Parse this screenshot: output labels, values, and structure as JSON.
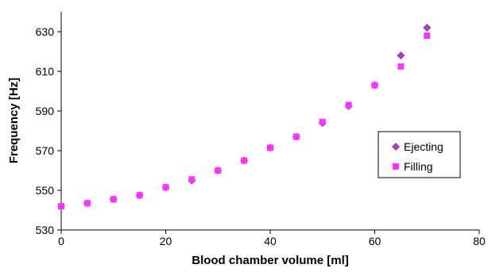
{
  "chart_data": {
    "type": "scatter",
    "title": "",
    "xlabel": "Blood chamber volume [ml]",
    "ylabel": "Frequency  [Hz]",
    "xlim": [
      0,
      80
    ],
    "ylim": [
      530,
      640
    ],
    "xticks": [
      0,
      20,
      40,
      60,
      80
    ],
    "yticks": [
      530,
      550,
      570,
      590,
      610,
      630
    ],
    "grid": false,
    "legend_position": "right",
    "series": [
      {
        "name": "Ejecting",
        "marker": "diamond",
        "color": "#b03fc0",
        "x": [
          0,
          5,
          10,
          15,
          20,
          25,
          30,
          35,
          40,
          45,
          50,
          55,
          60,
          65,
          70
        ],
        "y": [
          542,
          543.5,
          545.5,
          547.5,
          551.5,
          555,
          560,
          565,
          571.5,
          577,
          584,
          592.5,
          603,
          618,
          632
        ]
      },
      {
        "name": "Filling",
        "marker": "square",
        "color": "#ff33ff",
        "x": [
          0,
          5,
          10,
          15,
          20,
          25,
          30,
          35,
          40,
          45,
          50,
          55,
          60,
          65,
          70
        ],
        "y": [
          542,
          543.5,
          545.5,
          547.5,
          551.5,
          555.5,
          560,
          565,
          571.5,
          577,
          584.5,
          593,
          603,
          612.5,
          628
        ]
      }
    ]
  }
}
